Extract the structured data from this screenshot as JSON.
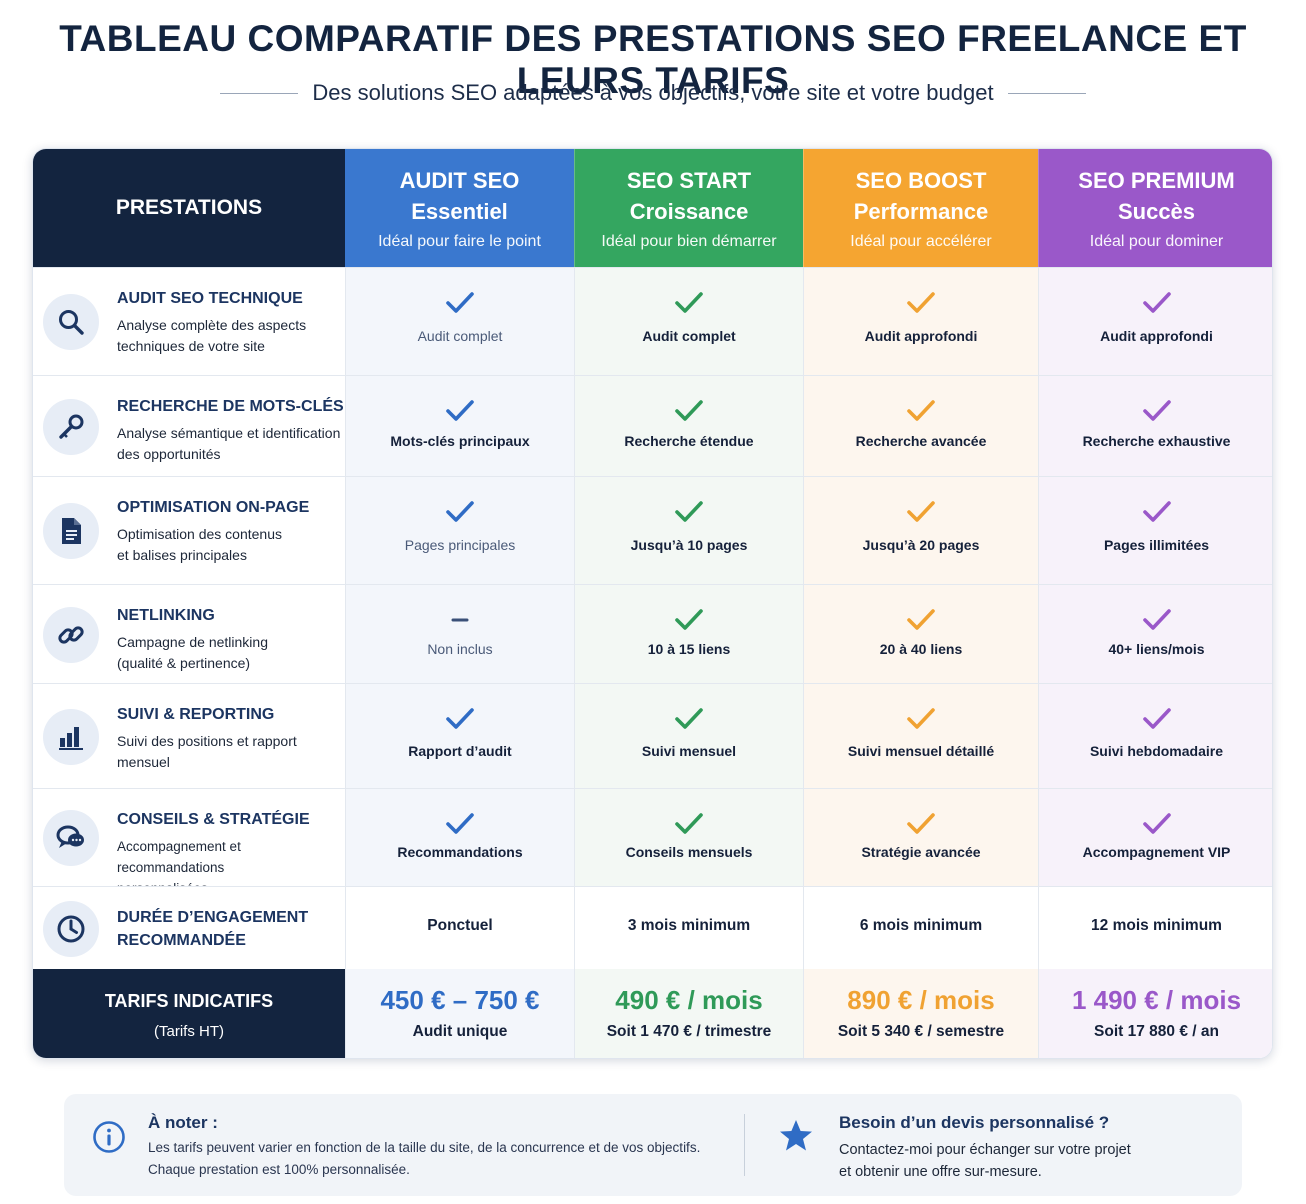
{
  "header": {
    "title": "TABLEAU COMPARATIF DES PRESTATIONS SEO FREELANCE ET LEURS TARIFS",
    "subtitle": "Des solutions SEO adaptées à vos objectifs, votre site et votre budget"
  },
  "table": {
    "prestations_header": "PRESTATIONS",
    "columns": [
      {
        "name": "AUDIT SEO",
        "tier": "Essentiel",
        "tagline": "Idéal pour faire le point",
        "color": "#3a78cf",
        "light": "#f3f6fb",
        "check": "#2f6cc5"
      },
      {
        "name": "SEO START",
        "tier": "Croissance",
        "tagline": "Idéal pour bien démarrer",
        "color": "#34a660",
        "light": "#f3f8f4",
        "check": "#2f9a58"
      },
      {
        "name": "SEO BOOST",
        "tier": "Performance",
        "tagline": "Idéal pour accélérer",
        "color": "#f5a531",
        "light": "#fdf6ee",
        "check": "#f0a232"
      },
      {
        "name": "SEO PREMIUM",
        "tier": "Succès",
        "tagline": "Idéal pour dominer",
        "color": "#9a58c9",
        "light": "#f7f2fa",
        "check": "#9a58c9"
      }
    ],
    "rows": [
      {
        "icon": "search-icon",
        "title": "AUDIT SEO TECHNIQUE",
        "desc": [
          "Analyse complète des aspects",
          "techniques de votre site"
        ],
        "values": [
          {
            "label": "Audit complet",
            "mark": "check",
            "muted": true
          },
          {
            "label": "Audit complet",
            "mark": "check"
          },
          {
            "label": "Audit approfondi",
            "mark": "check"
          },
          {
            "label": "Audit approfondi",
            "mark": "check"
          }
        ]
      },
      {
        "icon": "key-icon",
        "title": "RECHERCHE DE MOTS-CLÉS",
        "desc": [
          "Analyse sémantique et identification",
          "des opportunités"
        ],
        "values": [
          {
            "label": "Mots-clés principaux",
            "mark": "check"
          },
          {
            "label": "Recherche étendue",
            "mark": "check"
          },
          {
            "label": "Recherche avancée",
            "mark": "check"
          },
          {
            "label": "Recherche exhaustive",
            "mark": "check"
          }
        ]
      },
      {
        "icon": "document-icon",
        "title": "OPTIMISATION ON-PAGE",
        "desc": [
          "Optimisation des contenus",
          "et balises principales"
        ],
        "values": [
          {
            "label": "Pages principales",
            "mark": "check",
            "muted": true
          },
          {
            "label": "Jusqu’à 10 pages",
            "mark": "check"
          },
          {
            "label": "Jusqu’à 20 pages",
            "mark": "check"
          },
          {
            "label": "Pages illimitées",
            "mark": "check"
          }
        ]
      },
      {
        "icon": "link-icon",
        "title": "NETLINKING",
        "desc": [
          "Campagne de netlinking",
          "(qualité & pertinence)"
        ],
        "values": [
          {
            "label": "Non inclus",
            "mark": "dash",
            "muted": true
          },
          {
            "label": "10 à 15 liens",
            "mark": "check"
          },
          {
            "label": "20 à 40 liens",
            "mark": "check"
          },
          {
            "label": "40+ liens/mois",
            "mark": "check"
          }
        ]
      },
      {
        "icon": "bar-chart-icon",
        "title": "SUIVI & REPORTING",
        "desc": [
          "Suivi des positions et rapport",
          "mensuel"
        ],
        "values": [
          {
            "label": "Rapport d’audit",
            "mark": "check"
          },
          {
            "label": "Suivi mensuel",
            "mark": "check"
          },
          {
            "label": "Suivi mensuel détaillé",
            "mark": "check"
          },
          {
            "label": "Suivi hebdomadaire",
            "mark": "check"
          }
        ]
      },
      {
        "icon": "chat-icon",
        "title": "CONSEILS & STRATÉGIE",
        "desc": [
          "Accompagnement et recommandations",
          "personnalisées"
        ],
        "values": [
          {
            "label": "Recommandations",
            "mark": "check"
          },
          {
            "label": "Conseils mensuels",
            "mark": "check"
          },
          {
            "label": "Stratégie avancée",
            "mark": "check"
          },
          {
            "label": "Accompagnement VIP",
            "mark": "check"
          }
        ]
      }
    ],
    "duration": {
      "icon": "clock-icon",
      "title": [
        "DURÉE D’ENGAGEMENT",
        "RECOMMANDÉE"
      ],
      "values": [
        "Ponctuel",
        "3 mois minimum",
        "6 mois minimum",
        "12 mois minimum"
      ]
    },
    "pricing": {
      "title": "TARIFS INDICATIFS",
      "subtitle": "(Tarifs HT)",
      "prices": [
        {
          "price": "450 € – 750 €",
          "sub": "Audit unique"
        },
        {
          "price": "490 € / mois",
          "sub": "Soit 1 470 € / trimestre"
        },
        {
          "price": "890 € / mois",
          "sub": "Soit 5 340 € / semestre"
        },
        {
          "price": "1 490 € / mois",
          "sub": "Soit 17 880 € / an"
        }
      ]
    }
  },
  "note": {
    "title": "À noter :",
    "text": [
      "Les tarifs peuvent varier en fonction de la taille du site, de la concurrence et de vos objectifs.",
      "Chaque prestation est 100% personnalisée."
    ],
    "quote_title": "Besoin d’un devis personnalisé ?",
    "quote_text": [
      "Contactez-moi pour échanger sur votre projet",
      "et obtenir une offre sur-mesure."
    ]
  }
}
